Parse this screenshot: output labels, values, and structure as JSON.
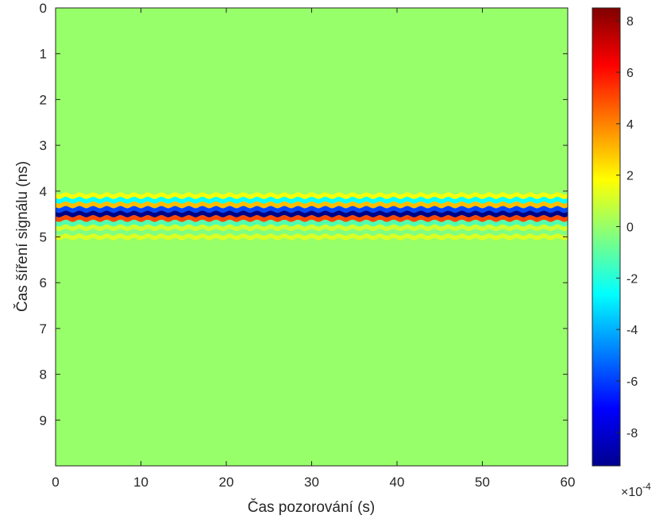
{
  "chart_data": {
    "type": "heatmap",
    "xlabel": "Čas pozorování (s)",
    "ylabel": "Čas šíření signálu (ns)",
    "xlim": [
      0,
      60
    ],
    "ylim": [
      0,
      10
    ],
    "y_reversed": true,
    "x_ticks": [
      "0",
      "10",
      "20",
      "30",
      "40",
      "50",
      "60"
    ],
    "y_ticks": [
      "0",
      "1",
      "2",
      "3",
      "4",
      "5",
      "6",
      "7",
      "8",
      "9"
    ],
    "colormap": "jet",
    "color_limits": [
      -9.3,
      8.5
    ],
    "colorbar_ticks": [
      "8",
      "6",
      "4",
      "2",
      "0",
      "-2",
      "-4",
      "-6",
      "-8"
    ],
    "colorbar_multiplier": "×10",
    "colorbar_exponent": "-4",
    "grid": false,
    "background_value": 0,
    "band": {
      "description": "horizontal oscillating wavelet band, constant across observation time",
      "y_range": [
        4.1,
        5.05
      ],
      "profile": [
        {
          "y": 4.1,
          "value": 1.6
        },
        {
          "y": 4.2,
          "value": -2.5
        },
        {
          "y": 4.3,
          "value": 3.0
        },
        {
          "y": 4.4,
          "value": -5.8
        },
        {
          "y": 4.5,
          "value": -9.2
        },
        {
          "y": 4.6,
          "value": 5.0
        },
        {
          "y": 4.7,
          "value": -1.2
        },
        {
          "y": 4.8,
          "value": 1.0
        },
        {
          "y": 4.9,
          "value": -0.4
        },
        {
          "y": 5.0,
          "value": 1.2
        }
      ],
      "wiggle_period_s": 1.6
    }
  }
}
